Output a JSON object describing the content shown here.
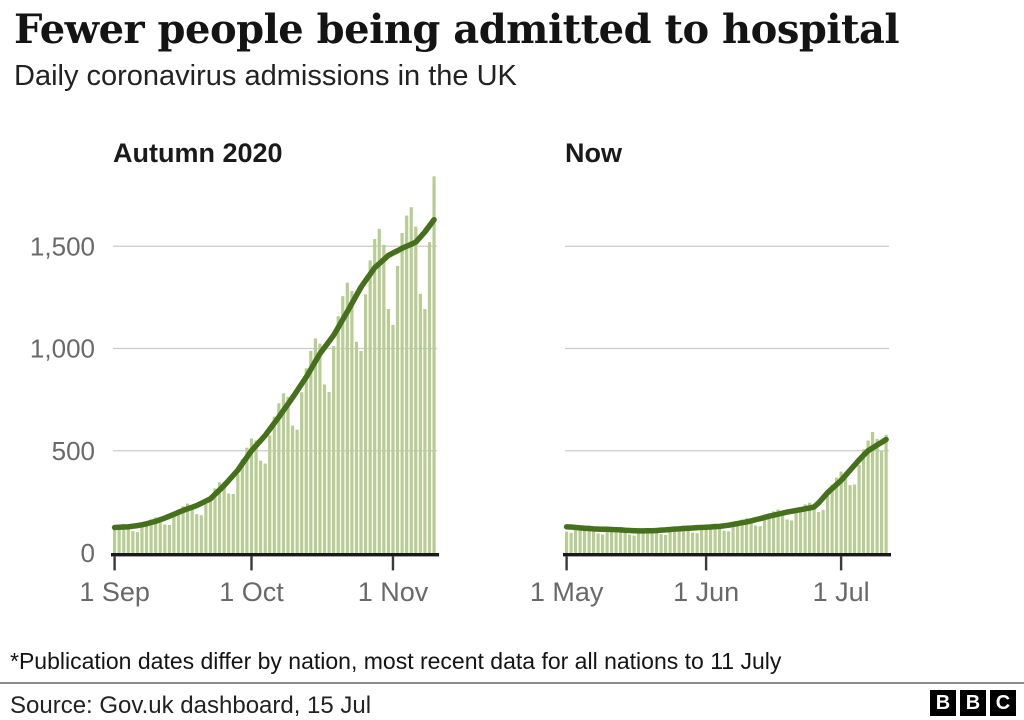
{
  "header": {
    "title": "Fewer people being admitted to hospital",
    "subtitle": "Daily coronavirus admissions in the UK"
  },
  "colors": {
    "bar": "#b8cd94",
    "line": "#45711c",
    "grid": "#cccccc",
    "axis": "#1a1a1a",
    "tick": "#3a3a3a",
    "tick_label": "#696969",
    "text": "#141414",
    "logo_bg": "#000000"
  },
  "chart_data": [
    {
      "type": "bar",
      "panel_label": "Autumn 2020",
      "x_range": [
        "1 Sep",
        "10 Nov"
      ],
      "ylim": [
        0,
        1900
      ],
      "grid": true,
      "yticks": [
        {
          "value": 0,
          "label": "0"
        },
        {
          "value": 500,
          "label": "500"
        },
        {
          "value": 1000,
          "label": "1,000"
        },
        {
          "value": 1500,
          "label": "1,500"
        }
      ],
      "xticks": [
        {
          "day": 0,
          "label": "1 Sep"
        },
        {
          "day": 30,
          "label": "1 Oct"
        },
        {
          "day": 61,
          "label": "1 Nov"
        }
      ],
      "series": [
        {
          "name": "daily admissions",
          "type": "bar",
          "values": [
            131,
            139,
            142,
            134,
            107,
            102,
            131,
            150,
            164,
            174,
            171,
            140,
            137,
            180,
            209,
            229,
            242,
            235,
            190,
            185,
            241,
            278,
            316,
            345,
            347,
            291,
            289,
            385,
            459,
            515,
            560,
            551,
            451,
            437,
            575,
            667,
            732,
            781,
            764,
            623,
            603,
            786,
            903,
            988,
            1049,
            1024,
            824,
            787,
            1012,
            1158,
            1256,
            1322,
            1281,
            1033,
            988,
            1265,
            1431,
            1535,
            1585,
            1507,
            1193,
            1115,
            1404,
            1565,
            1650,
            1691,
            1596,
            1267,
            1193,
            1520,
            1842
          ]
        },
        {
          "name": "7-day average",
          "type": "line",
          "values": [
            125,
            126,
            127,
            128,
            131,
            134,
            138,
            143,
            149,
            155,
            163,
            171,
            180,
            189,
            199,
            208,
            216,
            224,
            232,
            243,
            254,
            265,
            287,
            308,
            330,
            355,
            380,
            405,
            437,
            468,
            500,
            525,
            550,
            575,
            605,
            635,
            665,
            697,
            728,
            760,
            793,
            827,
            860,
            898,
            937,
            975,
            1005,
            1035,
            1065,
            1103,
            1142,
            1180,
            1220,
            1260,
            1300,
            1332,
            1363,
            1395,
            1415,
            1435,
            1455,
            1467,
            1478,
            1490,
            1500,
            1510,
            1520,
            1545,
            1570,
            1600,
            1630
          ]
        }
      ]
    },
    {
      "type": "bar",
      "panel_label": "Now",
      "x_range": [
        "1 May",
        "11 Jul"
      ],
      "ylim": [
        0,
        1900
      ],
      "grid": true,
      "yticks": [
        {
          "value": 0,
          "label": "0"
        },
        {
          "value": 500,
          "label": "500"
        },
        {
          "value": 1000,
          "label": "1,000"
        },
        {
          "value": 1500,
          "label": "1,500"
        }
      ],
      "xticks": [
        {
          "day": 0,
          "label": "1 May"
        },
        {
          "day": 31,
          "label": "1 Jun"
        },
        {
          "day": 61,
          "label": "1 Jul"
        }
      ],
      "series": [
        {
          "name": "daily admissions",
          "type": "bar",
          "values": [
            105,
            99,
            119,
            130,
            133,
            134,
            123,
            96,
            90,
            110,
            122,
            125,
            127,
            115,
            90,
            85,
            103,
            114,
            120,
            122,
            114,
            92,
            88,
            109,
            124,
            130,
            134,
            126,
            100,
            97,
            119,
            134,
            140,
            144,
            135,
            109,
            106,
            133,
            153,
            163,
            170,
            163,
            134,
            131,
            165,
            191,
            204,
            213,
            203,
            164,
            159,
            198,
            225,
            238,
            246,
            234,
            201,
            211,
            280,
            334,
            369,
            398,
            395,
            332,
            335,
            432,
            507,
            550,
            592,
            558,
            498,
            578
          ]
        },
        {
          "name": "7-day average",
          "type": "line",
          "values": [
            128,
            127,
            125,
            123,
            121,
            120,
            118,
            117,
            116,
            116,
            115,
            114,
            113,
            111,
            110,
            109,
            108,
            108,
            109,
            109,
            110,
            112,
            113,
            115,
            117,
            118,
            120,
            121,
            122,
            124,
            125,
            126,
            127,
            129,
            130,
            133,
            136,
            140,
            144,
            148,
            152,
            157,
            163,
            168,
            174,
            180,
            185,
            190,
            195,
            200,
            204,
            208,
            212,
            216,
            220,
            225,
            245,
            270,
            295,
            315,
            335,
            355,
            380,
            405,
            430,
            455,
            478,
            500,
            514,
            528,
            541,
            555
          ]
        }
      ]
    }
  ],
  "footer": {
    "note": "*Publication dates differ by nation, most recent data for all nations to 11 July",
    "source": "Source: Gov.uk dashboard, 15 Jul"
  },
  "logo": {
    "letters": [
      "B",
      "B",
      "C"
    ]
  }
}
